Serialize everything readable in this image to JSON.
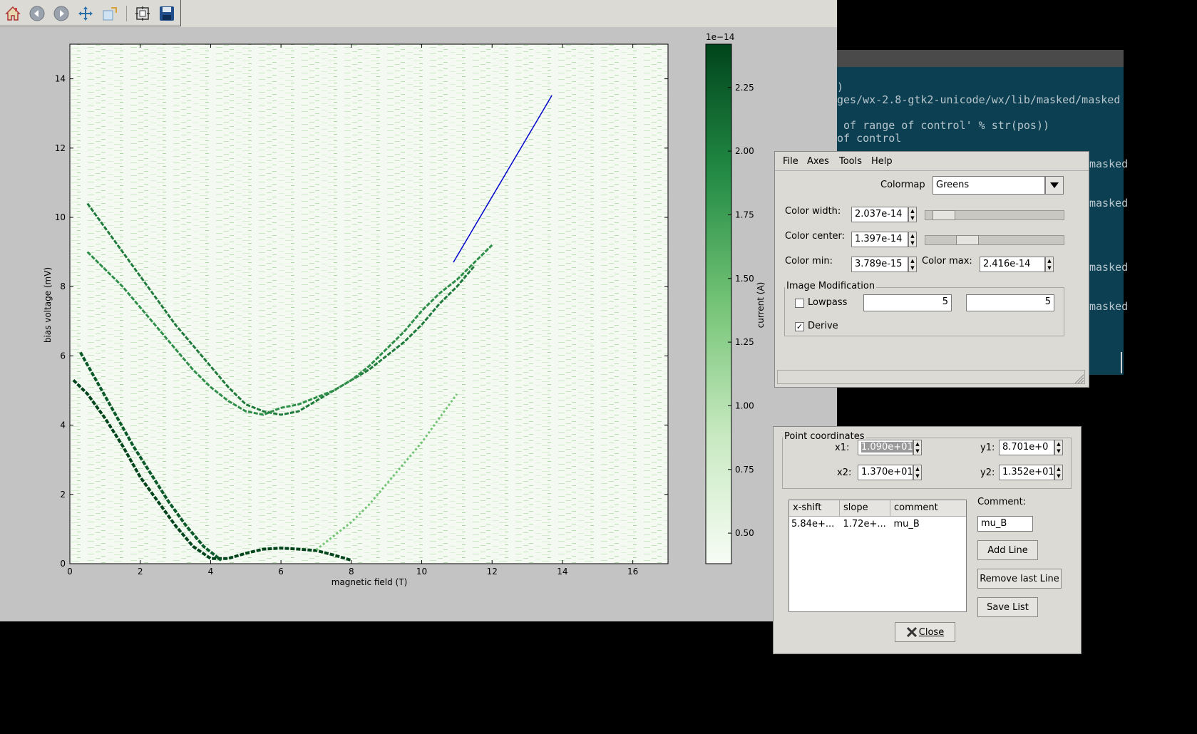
{
  "toolbar": {
    "buttons": [
      "home-icon",
      "back-icon",
      "forward-icon",
      "pan-icon",
      "zoom-icon",
      "subplots-icon",
      "save-icon"
    ]
  },
  "colors": {
    "line": "#0000cc",
    "cmap_dark": "#00441b",
    "cmap_light": "#f7fcf5"
  },
  "chart_data": {
    "type": "heatmap",
    "xlabel": "magnetic field (T)",
    "ylabel": "bias voltage (mV)",
    "xlim": [
      0,
      17
    ],
    "ylim": [
      0,
      15
    ],
    "xticks": [
      "0",
      "2",
      "4",
      "6",
      "8",
      "10",
      "12",
      "14",
      "16"
    ],
    "yticks": [
      "0",
      "2",
      "4",
      "6",
      "8",
      "10",
      "12",
      "14"
    ],
    "colorbar": {
      "label": "current (A)",
      "offset_text": "1e−14",
      "ticks": [
        "0.50",
        "0.75",
        "1.00",
        "1.25",
        "1.50",
        "1.75",
        "2.00",
        "2.25"
      ],
      "range": [
        0.38,
        2.42
      ],
      "colormap": "Greens"
    },
    "drawn_line": {
      "x1": 10.9,
      "y1": 8.701,
      "x2": 13.7,
      "y2": 13.52
    },
    "traces": [
      {
        "name": "",
        "x": [
          0.1,
          0.5,
          1.0,
          1.5,
          2.0,
          2.5,
          3.0,
          3.5,
          4.0,
          4.5,
          5.0,
          5.5,
          6.0,
          6.5,
          7.0,
          7.5,
          8.0
        ],
        "y": [
          5.3,
          4.9,
          4.2,
          3.4,
          2.5,
          1.8,
          1.1,
          0.5,
          0.15,
          0.15,
          0.3,
          0.42,
          0.45,
          0.42,
          0.38,
          0.25,
          0.1
        ]
      },
      {
        "name": "",
        "x": [
          0.3,
          0.8,
          1.3,
          1.8,
          2.3,
          2.8,
          3.3,
          3.8,
          4.3
        ],
        "y": [
          6.1,
          5.2,
          4.3,
          3.4,
          2.6,
          1.8,
          1.1,
          0.5,
          0.1
        ]
      },
      {
        "name": "",
        "x": [
          0.5,
          1.0,
          1.5,
          2.0,
          2.5,
          3.0,
          3.5,
          4.0,
          4.5,
          5.0,
          5.5,
          6.0,
          6.5,
          7.0,
          7.5,
          8.0,
          8.5,
          9.0,
          9.5,
          10.0,
          10.5,
          11.0,
          11.5
        ],
        "y": [
          10.4,
          9.7,
          9.0,
          8.3,
          7.6,
          6.9,
          6.3,
          5.7,
          5.1,
          4.6,
          4.4,
          4.3,
          4.4,
          4.7,
          5.0,
          5.3,
          5.6,
          6.0,
          6.4,
          6.9,
          7.5,
          8.0,
          8.6
        ]
      },
      {
        "name": "",
        "x": [
          0.5,
          1.0,
          1.5,
          2.0,
          2.5,
          3.0,
          3.5,
          4.0,
          4.5,
          5.0,
          5.5,
          6.0,
          6.5,
          7.0,
          7.5,
          8.0,
          8.5,
          9.0,
          9.5,
          10.0,
          10.5,
          11.0,
          11.5,
          12.0
        ],
        "y": [
          9.0,
          8.5,
          8.0,
          7.4,
          6.8,
          6.2,
          5.6,
          5.1,
          4.7,
          4.4,
          4.3,
          4.5,
          4.6,
          4.8,
          5.0,
          5.3,
          5.7,
          6.2,
          6.7,
          7.3,
          7.8,
          8.2,
          8.7,
          9.2
        ]
      },
      {
        "name": "",
        "x": [
          7.0,
          7.5,
          8.0,
          8.5,
          9.0,
          9.5,
          10.0,
          10.5,
          11.0
        ],
        "y": [
          0.4,
          0.8,
          1.2,
          1.7,
          2.3,
          2.9,
          3.5,
          4.2,
          4.9
        ]
      }
    ]
  },
  "colormap_dialog": {
    "menu": [
      "File",
      "Axes",
      "Tools",
      "Help"
    ],
    "colormap_label": "Colormap",
    "colormap_value": "Greens",
    "color_width_label": "Color width:",
    "color_width_value": "2.037e-14",
    "color_width_slider": 0.06,
    "color_center_label": "Color center:",
    "color_center_value": "1.397e-14",
    "color_center_slider": 0.26,
    "color_min_label": "Color min:",
    "color_min_value": "3.789e-15",
    "color_max_label": "Color max:",
    "color_max_value": "2.416e-14",
    "image_mod_label": "Image Modification",
    "lowpass_label": "Lowpass",
    "lowpass_checked": false,
    "lowpass_value1": "5",
    "lowpass_value2": "5",
    "derive_label": "Derive",
    "derive_checked": true
  },
  "point_dialog": {
    "group_label": "Point coordinates",
    "x1_label": "x1:",
    "x1_value": "1.090e+01",
    "y1_label": "y1:",
    "y1_value": "8.701e+0",
    "x2_label": "x2:",
    "x2_value": "1.370e+01",
    "y2_label": "y2:",
    "y2_value": "1.352e+01",
    "columns": [
      "x-shift",
      "slope",
      "comment"
    ],
    "rows": [
      [
        "5.84e+...",
        "1.72e+...",
        "mu_B"
      ]
    ],
    "comment_label": "Comment:",
    "comment_value": "mu_B",
    "add_line": "Add Line",
    "remove_last": "Remove last Line",
    "save_list": "Save List",
    "close": "Close"
  },
  "terminal": {
    "lines": [
      ")",
      "ges/wx-2.8-gtk2-unicode/wx/lib/masked/masked",
      "",
      " of range of control' % str(pos))",
      "of control",
      "",
      "masked",
      "",
      "",
      "masked",
      "",
      "",
      "",
      "",
      "masked",
      "",
      "",
      "masked"
    ]
  }
}
